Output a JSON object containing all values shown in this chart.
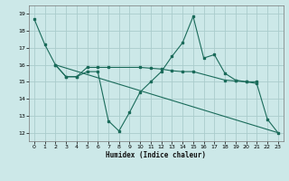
{
  "title": "",
  "xlabel": "Humidex (Indice chaleur)",
  "background_color": "#cce8e8",
  "grid_color": "#aacccc",
  "line_color": "#1a6b5a",
  "xlim": [
    -0.5,
    23.5
  ],
  "ylim": [
    11.5,
    19.5
  ],
  "yticks": [
    12,
    13,
    14,
    15,
    16,
    17,
    18,
    19
  ],
  "xticks": [
    0,
    1,
    2,
    3,
    4,
    5,
    6,
    7,
    8,
    9,
    10,
    11,
    12,
    13,
    14,
    15,
    16,
    17,
    18,
    19,
    20,
    21,
    22,
    23
  ],
  "series1_x": [
    0,
    1,
    2,
    3,
    4,
    5,
    6,
    7,
    8,
    9,
    10,
    11,
    12,
    13,
    14,
    15,
    16,
    17,
    18,
    19,
    20,
    21,
    22,
    23
  ],
  "series1_y": [
    18.7,
    17.2,
    16.0,
    15.3,
    15.3,
    15.6,
    15.6,
    12.7,
    12.1,
    13.2,
    14.4,
    15.0,
    15.6,
    16.5,
    17.3,
    18.85,
    16.4,
    16.6,
    15.5,
    15.1,
    15.0,
    14.9,
    12.8,
    12.0
  ],
  "series2_x": [
    2,
    3,
    4,
    5,
    6,
    7,
    10,
    11,
    12,
    13,
    14,
    15,
    18,
    19,
    20,
    21
  ],
  "series2_y": [
    16.0,
    15.3,
    15.3,
    15.85,
    15.85,
    15.85,
    15.85,
    15.8,
    15.75,
    15.65,
    15.6,
    15.6,
    15.1,
    15.05,
    15.0,
    15.0
  ],
  "series3_x": [
    2,
    23
  ],
  "series3_y": [
    16.0,
    12.0
  ]
}
